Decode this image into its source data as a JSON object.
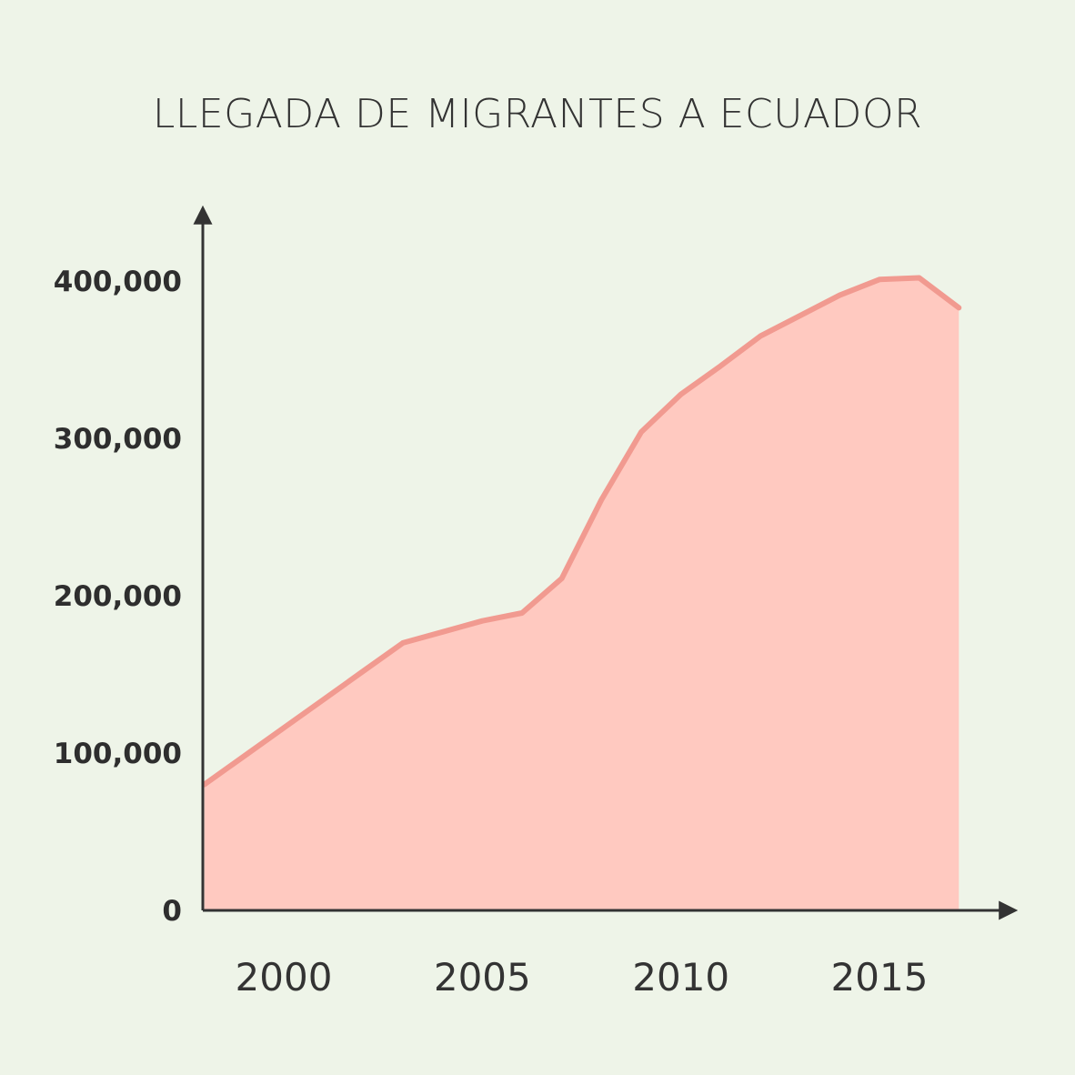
{
  "chart_data": {
    "type": "area",
    "title": "LLEGADA DE MIGRANTES A ECUADOR",
    "xlabel": "",
    "ylabel": "",
    "x": [
      1998,
      1999,
      2000,
      2001,
      2002,
      2003,
      2004,
      2005,
      2006,
      2007,
      2008,
      2009,
      2010,
      2011,
      2012,
      2013,
      2014,
      2015,
      2016,
      2017
    ],
    "series": [
      {
        "values": [
          80000,
          98000,
          116000,
          134000,
          152000,
          170000,
          177000,
          184000,
          189000,
          211000,
          261000,
          304000,
          328000,
          346000,
          365000,
          378000,
          391000,
          401000,
          402000,
          383000
        ],
        "color": "#f19a90",
        "fill": "#ffc9c0"
      }
    ],
    "xlim": [
      1998,
      2019
    ],
    "ylim": [
      0,
      400000
    ],
    "x_ticks": [
      2000,
      2005,
      2010,
      2015
    ],
    "x_tick_labels": [
      "2000",
      "2005",
      "2010",
      "2015"
    ],
    "y_ticks": [
      0,
      100000,
      200000,
      300000,
      400000
    ],
    "y_tick_labels": [
      "0",
      "100,000",
      "200,000",
      "300,000",
      "400,000"
    ],
    "grid": false,
    "legend": "none",
    "colors": {
      "background": "#eef4e8",
      "axis": "#333333",
      "text": "#333333"
    }
  }
}
